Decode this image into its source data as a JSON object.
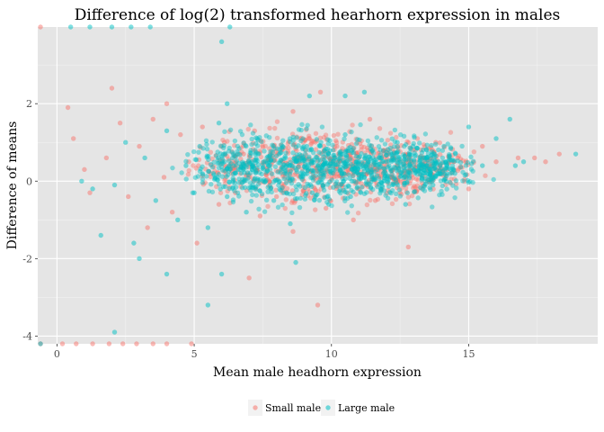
{
  "chart_data": {
    "type": "scatter",
    "title": "Difference of log(2) transformed hearhorn expression in males",
    "xlabel": "Mean male headhorn expression",
    "ylabel": "Difference of means",
    "xlim": [
      -0.7,
      19.7
    ],
    "ylim": [
      -4.2,
      3.98
    ],
    "x_ticks": [
      0,
      5,
      10,
      15
    ],
    "y_ticks": [
      -4,
      -2,
      0,
      2
    ],
    "grid": true,
    "legend_position": "bottom",
    "background": "#e5e5e5",
    "series": [
      {
        "name": "Small male",
        "color": "#f8766d",
        "points": [
          [
            0.4,
            1.9
          ],
          [
            0.6,
            1.1
          ],
          [
            1.0,
            0.3
          ],
          [
            1.2,
            -0.3
          ],
          [
            1.8,
            0.6
          ],
          [
            2.0,
            2.4
          ],
          [
            2.3,
            1.5
          ],
          [
            2.6,
            -0.4
          ],
          [
            3.0,
            0.9
          ],
          [
            3.3,
            -1.2
          ],
          [
            3.5,
            1.6
          ],
          [
            3.9,
            0.1
          ],
          [
            4.2,
            -0.8
          ],
          [
            4.5,
            1.2
          ],
          [
            4.8,
            0.5
          ],
          [
            5.1,
            -1.6
          ],
          [
            5.3,
            1.4
          ],
          [
            5.6,
            0.2
          ],
          [
            5.9,
            -0.6
          ],
          [
            6.1,
            1.0
          ],
          [
            6.3,
            0.4
          ],
          [
            6.5,
            -0.3
          ],
          [
            6.8,
            0.7
          ],
          [
            7.0,
            0.1
          ],
          [
            7.2,
            1.3
          ],
          [
            7.4,
            -0.9
          ],
          [
            7.6,
            0.5
          ],
          [
            7.8,
            0.2
          ],
          [
            8.0,
            -0.4
          ],
          [
            8.2,
            0.8
          ],
          [
            8.4,
            0.3
          ],
          [
            8.6,
            -1.3
          ],
          [
            8.8,
            0.6
          ],
          [
            9.0,
            0.0
          ],
          [
            9.2,
            1.1
          ],
          [
            9.4,
            -0.2
          ],
          [
            9.6,
            0.4
          ],
          [
            9.8,
            -0.7
          ],
          [
            10.0,
            0.5
          ],
          [
            10.2,
            0.9
          ],
          [
            10.4,
            -0.1
          ],
          [
            10.6,
            0.3
          ],
          [
            10.8,
            -1.0
          ],
          [
            11.0,
            0.6
          ],
          [
            11.3,
            0.2
          ],
          [
            11.6,
            -0.5
          ],
          [
            11.9,
            0.8
          ],
          [
            12.2,
            0.1
          ],
          [
            12.5,
            -0.3
          ],
          [
            12.8,
            0.7
          ],
          [
            13.1,
            0.4
          ],
          [
            13.5,
            0.0
          ],
          [
            13.8,
            1.0
          ],
          [
            14.2,
            0.3
          ],
          [
            14.6,
            0.6
          ],
          [
            15.0,
            -0.2
          ],
          [
            15.5,
            0.9
          ],
          [
            16.0,
            0.5
          ],
          [
            16.8,
            0.6
          ],
          [
            17.4,
            0.6
          ],
          [
            17.8,
            0.5
          ],
          [
            18.3,
            0.7
          ],
          [
            9.5,
            -3.2
          ],
          [
            7.0,
            -2.5
          ],
          [
            12.8,
            -1.7
          ],
          [
            4.0,
            2.0
          ],
          [
            9.6,
            2.3
          ],
          [
            8.6,
            1.8
          ],
          [
            11.4,
            1.6
          ],
          [
            6.0,
            0.9
          ],
          [
            -0.6,
            3.98
          ],
          [
            0.2,
            -4.2
          ],
          [
            0.7,
            -4.2
          ],
          [
            1.3,
            -4.2
          ],
          [
            1.9,
            -4.2
          ],
          [
            2.4,
            -4.2
          ],
          [
            2.9,
            -4.2
          ],
          [
            3.5,
            -4.2
          ],
          [
            4.0,
            -4.2
          ],
          [
            4.9,
            -4.2
          ],
          [
            -0.6,
            -4.2
          ]
        ]
      },
      {
        "name": "Large male",
        "color": "#00bfc4",
        "points": [
          [
            0.9,
            0.0
          ],
          [
            1.3,
            -0.2
          ],
          [
            1.6,
            -1.4
          ],
          [
            2.1,
            -0.1
          ],
          [
            2.5,
            1.0
          ],
          [
            2.8,
            -1.6
          ],
          [
            3.2,
            0.6
          ],
          [
            3.6,
            -0.5
          ],
          [
            4.0,
            1.3
          ],
          [
            4.4,
            -1.0
          ],
          [
            4.7,
            0.4
          ],
          [
            5.0,
            -0.3
          ],
          [
            5.2,
            0.9
          ],
          [
            5.5,
            -1.2
          ],
          [
            5.7,
            0.2
          ],
          [
            5.9,
            1.5
          ],
          [
            6.2,
            -0.4
          ],
          [
            6.4,
            0.6
          ],
          [
            6.6,
            0.3
          ],
          [
            6.9,
            -0.8
          ],
          [
            7.1,
            0.5
          ],
          [
            7.3,
            1.1
          ],
          [
            7.5,
            0.0
          ],
          [
            7.7,
            0.4
          ],
          [
            7.9,
            -0.5
          ],
          [
            8.1,
            0.7
          ],
          [
            8.3,
            0.2
          ],
          [
            8.5,
            -1.1
          ],
          [
            8.7,
            0.5
          ],
          [
            8.9,
            0.1
          ],
          [
            9.1,
            0.9
          ],
          [
            9.3,
            -0.3
          ],
          [
            9.5,
            0.4
          ],
          [
            9.7,
            0.2
          ],
          [
            9.9,
            -0.6
          ],
          [
            10.1,
            0.6
          ],
          [
            10.3,
            0.3
          ],
          [
            10.5,
            1.2
          ],
          [
            10.7,
            -0.4
          ],
          [
            10.9,
            0.5
          ],
          [
            11.2,
            0.1
          ],
          [
            11.5,
            0.8
          ],
          [
            11.8,
            -0.2
          ],
          [
            12.1,
            0.4
          ],
          [
            12.4,
            1.0
          ],
          [
            12.7,
            -0.6
          ],
          [
            13.0,
            0.3
          ],
          [
            13.4,
            0.6
          ],
          [
            13.7,
            -0.1
          ],
          [
            14.1,
            0.9
          ],
          [
            14.5,
            0.2
          ],
          [
            15.0,
            1.4
          ],
          [
            15.5,
            0.4
          ],
          [
            16.0,
            1.1
          ],
          [
            16.5,
            1.6
          ],
          [
            17.0,
            0.5
          ],
          [
            18.9,
            0.7
          ],
          [
            16.7,
            0.4
          ],
          [
            5.5,
            -3.2
          ],
          [
            6.0,
            -2.4
          ],
          [
            8.7,
            -2.1
          ],
          [
            3.0,
            -2.0
          ],
          [
            4.0,
            -2.4
          ],
          [
            2.1,
            -3.9
          ],
          [
            6.2,
            2.0
          ],
          [
            10.5,
            2.2
          ],
          [
            11.2,
            2.3
          ],
          [
            9.2,
            2.2
          ],
          [
            0.5,
            3.98
          ],
          [
            1.2,
            3.98
          ],
          [
            2.0,
            3.98
          ],
          [
            2.7,
            3.98
          ],
          [
            3.4,
            3.98
          ],
          [
            6.3,
            3.98
          ],
          [
            6.0,
            3.6
          ],
          [
            -0.6,
            -4.2
          ]
        ]
      }
    ],
    "dense_band": {
      "x_range": [
        5.5,
        14.5
      ],
      "y_center": 0.35,
      "y_spread": 0.45
    }
  },
  "legend": {
    "items": [
      {
        "label": "Small male",
        "color": "#f8766d"
      },
      {
        "label": "Large male",
        "color": "#00bfc4"
      }
    ]
  }
}
